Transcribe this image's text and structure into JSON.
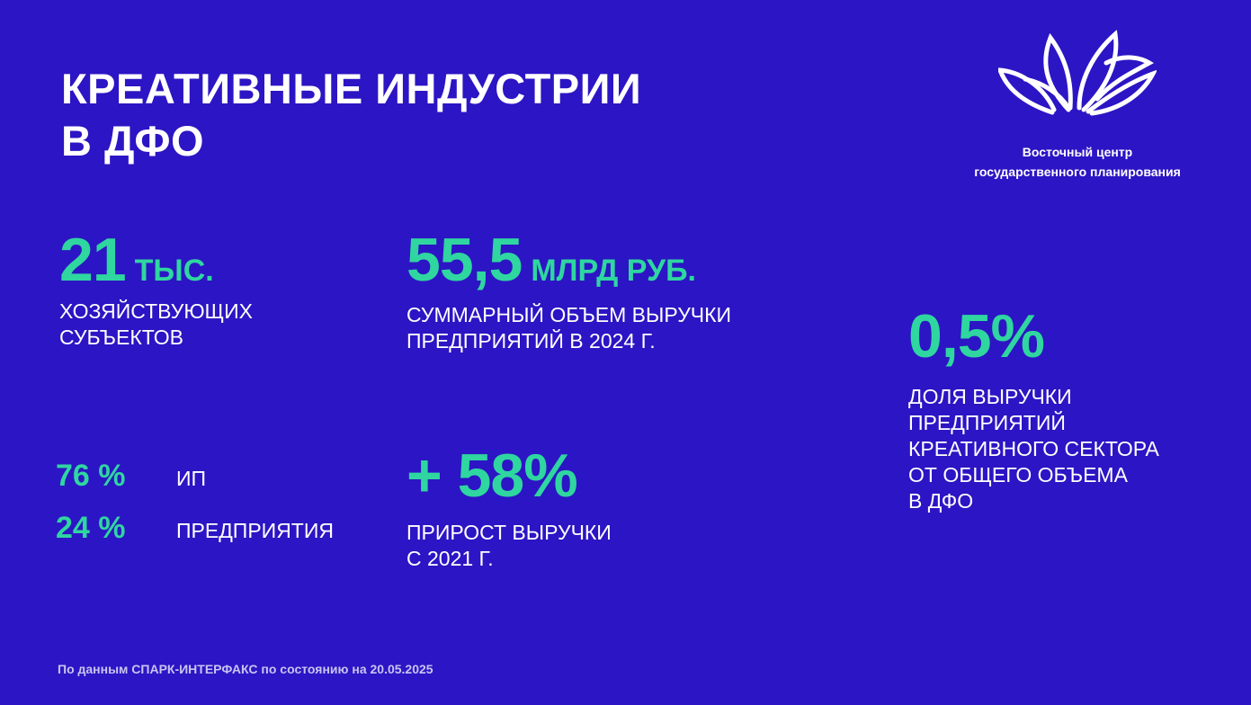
{
  "title": {
    "line1": "КРЕАТИВНЫЕ ИНДУСТРИИ",
    "line2": "В ДФО"
  },
  "logo": {
    "icon": "lotus-icon",
    "line1": "Восточный центр",
    "line2": "государственного планирования"
  },
  "entities": {
    "value": "21",
    "unit": "ТЫС.",
    "caption1": "ХОЗЯЙСТВУЮЩИХ",
    "caption2": "СУБЪЕКТОВ"
  },
  "revenue": {
    "value": "55,5",
    "unit": "МЛРД РУБ.",
    "caption1": "СУММАРНЫЙ ОБЪЕМ ВЫРУЧКИ",
    "caption2": "ПРЕДПРИЯТИЙ В 2024 г."
  },
  "share_total": {
    "value": "0,5%",
    "caption1": "ДОЛЯ ВЫРУЧКИ",
    "caption2": "ПРЕДПРИЯТИЙ",
    "caption3": "КРЕАТИВНОГО СЕКТОРА",
    "caption4": "ОТ ОБЩЕГО ОБЪЕМА",
    "caption5": "в ДФО"
  },
  "structure": [
    {
      "pct": "76 %",
      "label": "ИП"
    },
    {
      "pct": "24 %",
      "label": "ПРЕДПРИЯТИЯ"
    }
  ],
  "growth": {
    "value": "+ 58%",
    "caption1": "ПРИРОСТ ВЫРУЧКИ",
    "caption2": "С 2021 г."
  },
  "footer": "По данным СПАРК-ИНТЕРФАКС по состоянию на 20.05.2025",
  "colors": {
    "background": "#2c15c4",
    "accent": "#2fd6a0",
    "text": "#ffffff"
  }
}
